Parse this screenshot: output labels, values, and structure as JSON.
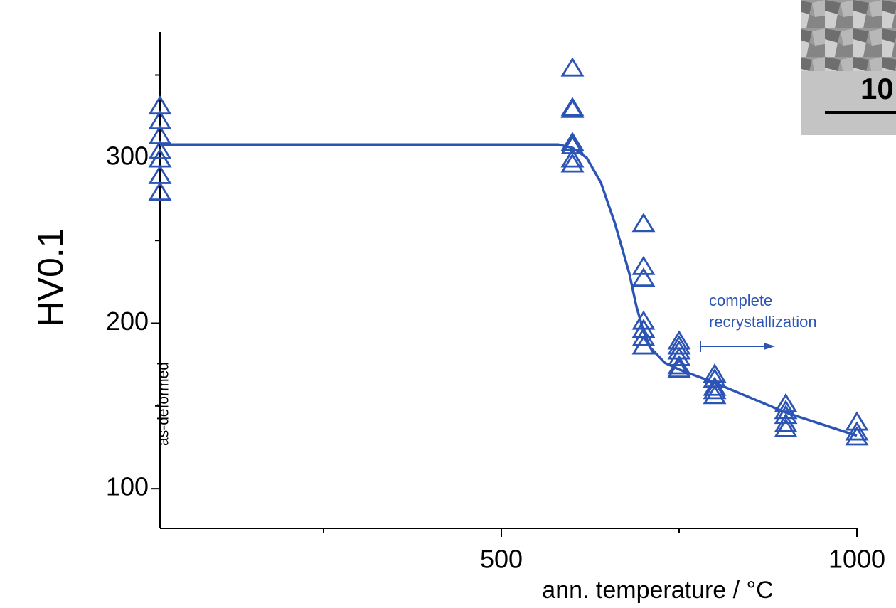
{
  "chart_data": {
    "type": "scatter",
    "x_label": "ann. temperature / °C",
    "y_label": "HV0.1",
    "x_annotation": "as-deformed",
    "annotation": [
      "complete",
      "recrystallization"
    ],
    "color": "#2b54b5",
    "x": [
      20,
      20,
      20,
      20,
      20,
      20,
      20,
      600,
      600,
      600,
      600,
      600,
      600,
      600,
      700,
      700,
      700,
      700,
      700,
      700,
      700,
      750,
      750,
      750,
      750,
      750,
      750,
      800,
      800,
      800,
      800,
      800,
      900,
      900,
      900,
      900,
      900,
      1000,
      1000,
      1000
    ],
    "values": [
      331,
      322,
      313,
      304,
      299,
      289,
      279,
      354,
      330,
      329,
      309,
      307,
      299,
      296,
      260,
      234,
      227,
      201,
      196,
      191,
      186,
      189,
      186,
      183,
      179,
      174,
      172,
      169,
      166,
      161,
      159,
      156,
      151,
      147,
      144,
      139,
      136,
      140,
      134,
      131
    ],
    "fit": {
      "x": [
        20,
        580,
        600,
        620,
        640,
        660,
        680,
        690,
        700,
        710,
        730,
        750,
        800,
        900,
        1000
      ],
      "values": [
        308,
        308,
        306,
        300,
        285,
        260,
        230,
        210,
        195,
        185,
        176,
        172,
        164,
        146,
        132
      ]
    },
    "xlim": [
      20,
      1000
    ],
    "xticks": [
      500,
      1000
    ],
    "xminor_ticks": [
      250,
      750
    ],
    "ylim": [
      76,
      376
    ],
    "yticks": [
      100,
      200,
      300
    ],
    "yminor_ticks": [
      150,
      250,
      350
    ]
  },
  "inset": {
    "label": "10"
  }
}
